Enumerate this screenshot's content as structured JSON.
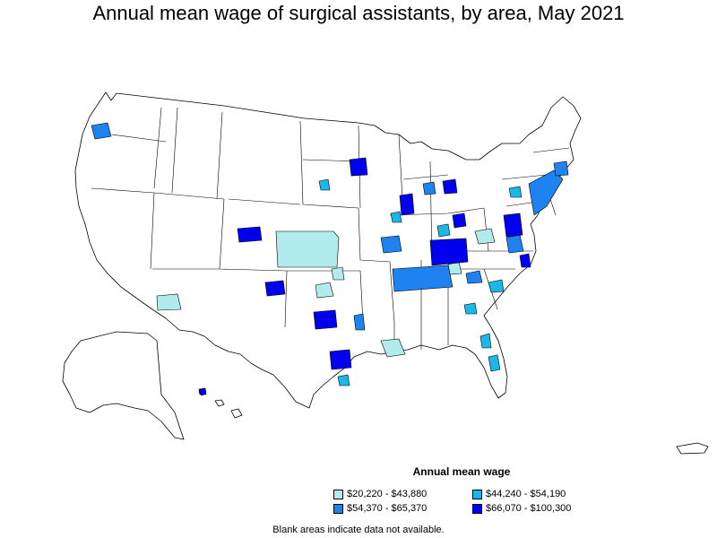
{
  "title": "Annual mean wage of surgical assistants, by area, May 2021",
  "legend": {
    "title": "Annual mean wage",
    "items": [
      {
        "label": "$20,220 - $43,880",
        "color": "#b2ebeb"
      },
      {
        "label": "$44,240 - $54,190",
        "color": "#1ab8e8"
      },
      {
        "label": "$54,370 - $65,370",
        "color": "#1e82f0"
      },
      {
        "label": "$66,070 - $100,300",
        "color": "#0000ee"
      }
    ]
  },
  "footnote": "Blank areas indicate data not available.",
  "colors": {
    "border": "#000000",
    "no_data": "#ffffff"
  }
}
